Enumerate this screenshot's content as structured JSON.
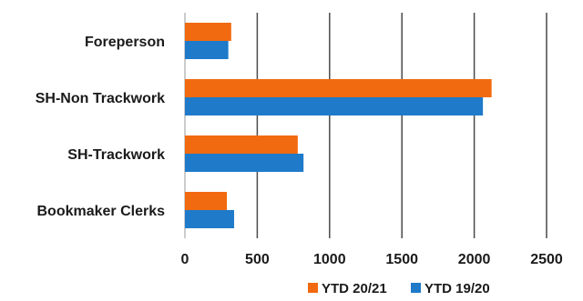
{
  "chart_data": {
    "type": "bar",
    "orientation": "horizontal",
    "title": "",
    "xlabel": "",
    "ylabel": "",
    "categories": [
      "Foreperson",
      "SH-Non Trackwork",
      "SH-Trackwork",
      "Bookmaker Clerks"
    ],
    "series": [
      {
        "name": "YTD 20/21",
        "color": "#f26a10",
        "values": [
          320,
          2120,
          780,
          290
        ]
      },
      {
        "name": "YTD 19/20",
        "color": "#1f7ac9",
        "values": [
          300,
          2060,
          820,
          340
        ]
      }
    ],
    "xlim": [
      0,
      2500
    ],
    "xticks": [
      "0",
      "500",
      "1000",
      "1500",
      "2000",
      "2500"
    ],
    "grid": "vertical",
    "legend_position": "bottom-right"
  }
}
